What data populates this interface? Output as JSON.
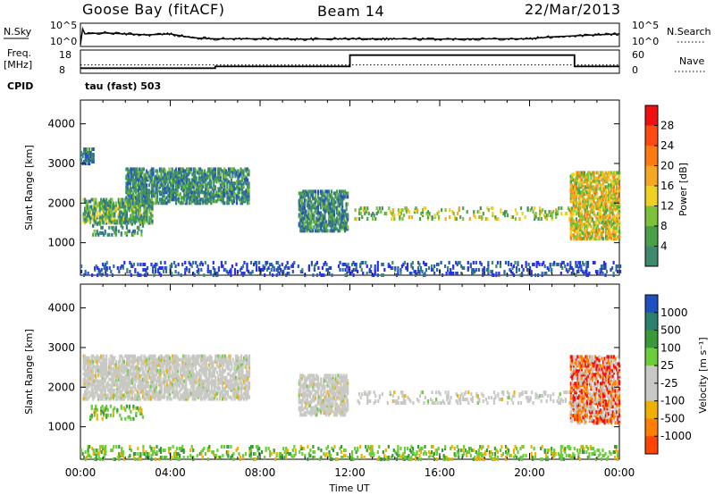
{
  "header": {
    "station": "Goose Bay (fitACF)",
    "beam": "Beam 14",
    "date": "22/Mar/2013"
  },
  "labels": {
    "nsky": "N.Sky",
    "freq_line1": "Freq.",
    "freq_line2": "[MHz]",
    "cpid": "CPID",
    "nsearch": "N.Search",
    "nave": "Nave",
    "cpid_value": "tau (fast) 503"
  },
  "chart_data": [
    {
      "panel": "noise",
      "type": "line",
      "left_axis": {
        "label": "N.Sky",
        "tick_labels": [
          "10^5",
          "10^0"
        ]
      },
      "right_axis": {
        "label": "N.Search",
        "tick_labels": [
          "10^5",
          "10^0"
        ]
      },
      "x": [
        0,
        0.1,
        0.2,
        1,
        2,
        3,
        4,
        5,
        6,
        8,
        10,
        12,
        14,
        16,
        18,
        20,
        21,
        22,
        23,
        24
      ],
      "y_relative": [
        0.0,
        0.8,
        0.55,
        0.6,
        0.55,
        0.5,
        0.55,
        0.35,
        0.3,
        0.3,
        0.28,
        0.3,
        0.3,
        0.28,
        0.3,
        0.3,
        0.4,
        0.45,
        0.5,
        0.55
      ]
    },
    {
      "panel": "freq_nave",
      "type": "line",
      "left_axis": {
        "label": "Freq. [MHz]",
        "tick_labels": [
          "18",
          "8"
        ],
        "range": [
          8,
          18
        ]
      },
      "right_axis": {
        "label": "Nave",
        "tick_labels": [
          "60",
          "0"
        ],
        "range": [
          0,
          60
        ]
      },
      "freq_steps": [
        {
          "from_hour": 0,
          "to_hour": 6,
          "value_mhz": 9.7
        },
        {
          "from_hour": 6,
          "to_hour": 12,
          "value_mhz": 10.6
        },
        {
          "from_hour": 12,
          "to_hour": 22,
          "value_mhz": 16.3
        },
        {
          "from_hour": 22,
          "to_hour": 24,
          "value_mhz": 10.6
        }
      ],
      "nave_value": 20
    },
    {
      "panel": "power",
      "type": "heatmap",
      "ylabel": "Slant Range [km]",
      "ylim": [
        180,
        4600
      ],
      "yticks": [
        1000,
        2000,
        3000,
        4000
      ],
      "xlim": [
        0,
        24
      ],
      "colorbar": {
        "label": "Power [dB]",
        "tick_labels": [
          "4",
          "8",
          "12",
          "16",
          "20",
          "24",
          "28"
        ],
        "colors": [
          "#2a2ef0",
          "#2550c0",
          "#2e6e9a",
          "#3f8a6c",
          "#4aa048",
          "#7cc33a",
          "#f0d020",
          "#f5a623",
          "#ff7a10",
          "#ff4a10",
          "#f01010"
        ]
      },
      "echo_regions": [
        {
          "hours": [
            0.1,
            3.2
          ],
          "range_km": [
            1500,
            2100
          ],
          "db": 12
        },
        {
          "hours": [
            2.0,
            7.5
          ],
          "range_km": [
            2000,
            2900
          ],
          "db": 8
        },
        {
          "hours": [
            0.4,
            2.8
          ],
          "range_km": [
            1200,
            1550
          ],
          "db": 10
        },
        {
          "hours": [
            0.0,
            0.6
          ],
          "range_km": [
            3000,
            3400
          ],
          "db": 6
        },
        {
          "hours": [
            9.7,
            11.9
          ],
          "range_km": [
            1300,
            2300
          ],
          "db": 10
        },
        {
          "hours": [
            12.2,
            21.8
          ],
          "range_km": [
            1600,
            1900
          ],
          "db": 14
        },
        {
          "hours": [
            21.8,
            24.0
          ],
          "range_km": [
            1100,
            2800
          ],
          "db": 18
        },
        {
          "hours": [
            0.0,
            24.0
          ],
          "range_km": [
            180,
            500
          ],
          "db": 4
        }
      ]
    },
    {
      "panel": "velocity",
      "type": "heatmap",
      "ylabel": "Slant Range [km]",
      "ylim": [
        180,
        4600
      ],
      "yticks": [
        1000,
        2000,
        3000,
        4000
      ],
      "xlabel": "Time UT",
      "xticks": [
        "00:00",
        "04:00",
        "08:00",
        "12:00",
        "16:00",
        "20:00",
        "00:00"
      ],
      "xlim": [
        0,
        24
      ],
      "colorbar": {
        "label": "Velocity [m s⁻¹]",
        "tick_labels": [
          "1000",
          "500",
          "100",
          "25",
          "-25",
          "-100",
          "-500",
          "-1000"
        ],
        "colors": [
          "#2050c0",
          "#2a7f6e",
          "#3a9a3a",
          "#6ccc3a",
          "#c8c8c4",
          "#c8c8c4",
          "#f0b000",
          "#ff8000",
          "#ff4500",
          "#f01010"
        ]
      },
      "echo_regions": [
        {
          "hours": [
            0.1,
            7.5
          ],
          "range_km": [
            1700,
            2800
          ],
          "velocity": 0
        },
        {
          "hours": [
            0.4,
            2.8
          ],
          "range_km": [
            1200,
            1550
          ],
          "velocity": 150
        },
        {
          "hours": [
            9.7,
            11.9
          ],
          "range_km": [
            1300,
            2300
          ],
          "velocity": 0
        },
        {
          "hours": [
            12.2,
            21.8
          ],
          "range_km": [
            1600,
            1900
          ],
          "velocity": 0
        },
        {
          "hours": [
            21.8,
            24.0
          ],
          "range_km": [
            1100,
            2800
          ],
          "velocity": -200
        },
        {
          "hours": [
            0.0,
            24.0
          ],
          "range_km": [
            180,
            500
          ],
          "velocity": 50
        }
      ]
    }
  ]
}
